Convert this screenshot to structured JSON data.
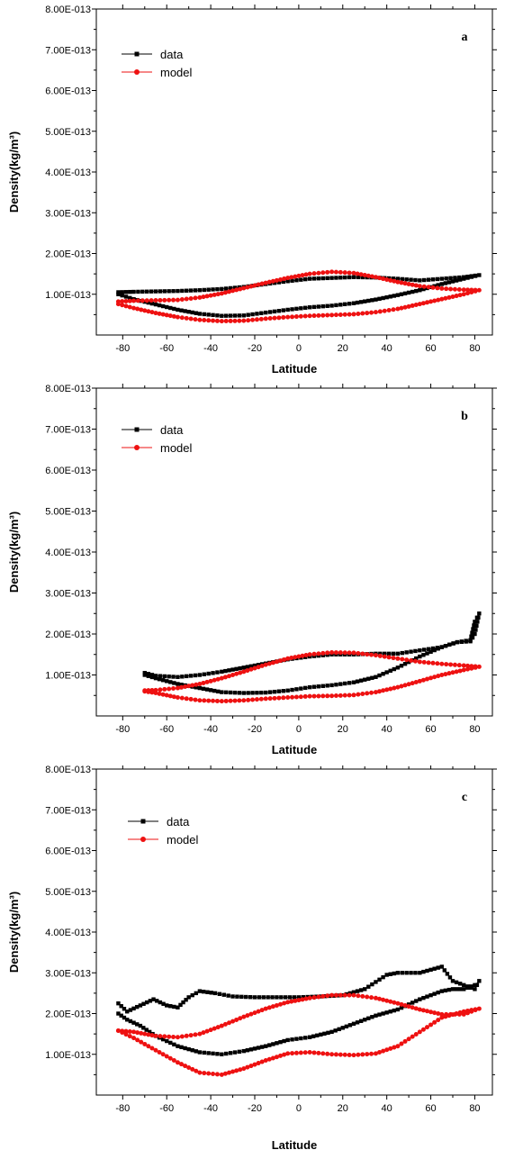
{
  "chart_data": [
    {
      "type": "scatter",
      "panel_label": "a",
      "xlabel": "Latitude",
      "ylabel": "Density(kg/m³)",
      "xlim": [
        -92,
        88
      ],
      "ylim": [
        0,
        8e-13
      ],
      "xticks": [
        -80,
        -60,
        -40,
        -20,
        0,
        20,
        40,
        60,
        80
      ],
      "yticks": [
        1e-13,
        2e-13,
        3e-13,
        4e-13,
        5e-13,
        6e-13,
        7e-13,
        8e-13
      ],
      "ytick_labels": [
        "1.00E-013",
        "2.00E-013",
        "3.00E-013",
        "4.00E-013",
        "5.00E-013",
        "6.00E-013",
        "7.00E-013",
        "8.00E-013"
      ],
      "legend_position": "top-left",
      "series": [
        {
          "name": "data",
          "color": "#000000",
          "marker": "square",
          "x": [
            -82,
            -75,
            -65,
            -55,
            -45,
            -35,
            -25,
            -15,
            -5,
            5,
            15,
            25,
            35,
            45,
            55,
            65,
            75,
            82,
            75,
            65,
            55,
            45,
            35,
            25,
            15,
            5,
            -5,
            -15,
            -25,
            -35,
            -45,
            -55,
            -65,
            -75,
            -82
          ],
          "y": [
            1.05e-13,
            1.06e-13,
            1.07e-13,
            1.08e-13,
            1.1e-13,
            1.13e-13,
            1.18e-13,
            1.25e-13,
            1.32e-13,
            1.38e-13,
            1.4e-13,
            1.42e-13,
            1.41e-13,
            1.38e-13,
            1.34e-13,
            1.38e-13,
            1.42e-13,
            1.47e-13,
            1.38e-13,
            1.25e-13,
            1.1e-13,
            9.8e-14,
            8.7e-14,
            7.8e-14,
            7.2e-14,
            6.8e-14,
            6.2e-14,
            5.5e-14,
            4.8e-14,
            4.7e-14,
            5.2e-14,
            6.2e-14,
            7.5e-14,
            8.8e-14,
            1e-13
          ]
        },
        {
          "name": "model",
          "color": "#ee1111",
          "marker": "circle",
          "x": [
            -82,
            -75,
            -65,
            -55,
            -45,
            -35,
            -25,
            -15,
            -5,
            5,
            15,
            25,
            35,
            45,
            55,
            65,
            75,
            82,
            75,
            65,
            55,
            45,
            35,
            25,
            15,
            5,
            -5,
            -15,
            -25,
            -35,
            -45,
            -55,
            -65,
            -75,
            -82
          ],
          "y": [
            8.2e-14,
            8.4e-14,
            8.5e-14,
            8.6e-14,
            9.2e-14,
            1.02e-13,
            1.15e-13,
            1.28e-13,
            1.4e-13,
            1.5e-13,
            1.55e-13,
            1.52e-13,
            1.42e-13,
            1.3e-13,
            1.2e-13,
            1.14e-13,
            1.11e-13,
            1.1e-13,
            1e-13,
            8.8e-14,
            7.6e-14,
            6.4e-14,
            5.6e-14,
            5.1e-14,
            4.9e-14,
            4.7e-14,
            4.4e-14,
            4e-14,
            3.5e-14,
            3.4e-14,
            3.7e-14,
            4.4e-14,
            5.4e-14,
            6.6e-14,
            7.6e-14
          ]
        }
      ]
    },
    {
      "type": "scatter",
      "panel_label": "b",
      "xlabel": "Latitude",
      "ylabel": "Density(kg/m³)",
      "xlim": [
        -92,
        88
      ],
      "ylim": [
        0,
        8e-13
      ],
      "xticks": [
        -80,
        -60,
        -40,
        -20,
        0,
        20,
        40,
        60,
        80
      ],
      "yticks": [
        1e-13,
        2e-13,
        3e-13,
        4e-13,
        5e-13,
        6e-13,
        7e-13,
        8e-13
      ],
      "ytick_labels": [
        "1.00E-013",
        "2.00E-013",
        "3.00E-013",
        "4.00E-013",
        "5.00E-013",
        "6.00E-013",
        "7.00E-013",
        "8.00E-013"
      ],
      "legend_position": "top-left",
      "series": [
        {
          "name": "data",
          "color": "#000000",
          "marker": "square",
          "x": [
            -70,
            -65,
            -55,
            -45,
            -35,
            -25,
            -15,
            -5,
            5,
            15,
            25,
            35,
            45,
            55,
            65,
            72,
            78,
            80,
            82,
            80,
            78,
            72,
            65,
            55,
            45,
            35,
            25,
            15,
            5,
            -5,
            -15,
            -25,
            -35,
            -45,
            -55,
            -65,
            -70
          ],
          "y": [
            1.05e-13,
            9.8e-14,
            9.5e-14,
            1e-13,
            1.08e-13,
            1.18e-13,
            1.28e-13,
            1.38e-13,
            1.45e-13,
            1.5e-13,
            1.5e-13,
            1.52e-13,
            1.52e-13,
            1.6e-13,
            1.68e-13,
            1.8e-13,
            1.85e-13,
            2.3e-13,
            2.5e-13,
            2e-13,
            1.82e-13,
            1.8e-13,
            1.68e-13,
            1.45e-13,
            1.18e-13,
            9.5e-14,
            8.2e-14,
            7.5e-14,
            7e-14,
            6.2e-14,
            5.7e-14,
            5.6e-14,
            5.8e-14,
            6.8e-14,
            7.8e-14,
            9.2e-14,
            1e-13
          ]
        },
        {
          "name": "model",
          "color": "#ee1111",
          "marker": "circle",
          "x": [
            -70,
            -65,
            -55,
            -45,
            -35,
            -25,
            -15,
            -5,
            5,
            15,
            25,
            35,
            45,
            55,
            65,
            75,
            82,
            75,
            65,
            55,
            45,
            35,
            25,
            15,
            5,
            -5,
            -15,
            -25,
            -35,
            -45,
            -55,
            -65,
            -70
          ],
          "y": [
            6.2e-14,
            6.3e-14,
            6.8e-14,
            7.8e-14,
            9.2e-14,
            1.08e-13,
            1.25e-13,
            1.4e-13,
            1.5e-13,
            1.55e-13,
            1.54e-13,
            1.48e-13,
            1.4e-13,
            1.32e-13,
            1.27e-13,
            1.23e-13,
            1.2e-13,
            1.12e-13,
            1e-13,
            8.5e-14,
            7e-14,
            5.8e-14,
            5.1e-14,
            4.9e-14,
            4.8e-14,
            4.5e-14,
            4.2e-14,
            3.8e-14,
            3.6e-14,
            3.8e-14,
            4.5e-14,
            5.6e-14,
            6e-14
          ]
        }
      ]
    },
    {
      "type": "scatter",
      "panel_label": "c",
      "xlabel": "Latitude",
      "ylabel": "Density(kg/m³)",
      "xlim": [
        -92,
        88
      ],
      "ylim": [
        0,
        8e-13
      ],
      "xticks": [
        -80,
        -60,
        -40,
        -20,
        0,
        20,
        40,
        60,
        80
      ],
      "yticks": [
        1e-13,
        2e-13,
        3e-13,
        4e-13,
        5e-13,
        6e-13,
        7e-13,
        8e-13
      ],
      "ytick_labels": [
        "1.00E-013",
        "2.00E-013",
        "3.00E-013",
        "4.00E-013",
        "5.00E-013",
        "6.00E-013",
        "7.00E-013",
        "8.00E-013"
      ],
      "legend_position": "top-left",
      "series": [
        {
          "name": "data",
          "color": "#000000",
          "marker": "square",
          "x": [
            -82,
            -78,
            -72,
            -66,
            -60,
            -55,
            -50,
            -45,
            -38,
            -30,
            -20,
            -10,
            0,
            10,
            20,
            30,
            40,
            45,
            55,
            65,
            70,
            75,
            80,
            82,
            80,
            75,
            70,
            65,
            55,
            45,
            35,
            25,
            15,
            5,
            -5,
            -15,
            -25,
            -35,
            -45,
            -55,
            -65,
            -72,
            -78,
            -82
          ],
          "y": [
            2.25e-13,
            2.05e-13,
            2.2e-13,
            2.35e-13,
            2.2e-13,
            2.15e-13,
            2.4e-13,
            2.55e-13,
            2.5e-13,
            2.42e-13,
            2.4e-13,
            2.4e-13,
            2.4e-13,
            2.42e-13,
            2.45e-13,
            2.6e-13,
            2.95e-13,
            3e-13,
            3e-13,
            3.15e-13,
            2.8e-13,
            2.7e-13,
            2.6e-13,
            2.8e-13,
            2.7e-13,
            2.6e-13,
            2.6e-13,
            2.55e-13,
            2.35e-13,
            2.1e-13,
            1.95e-13,
            1.75e-13,
            1.55e-13,
            1.42e-13,
            1.35e-13,
            1.2e-13,
            1.08e-13,
            1e-13,
            1.05e-13,
            1.2e-13,
            1.45e-13,
            1.7e-13,
            1.85e-13,
            2e-13
          ]
        },
        {
          "name": "model",
          "color": "#ee1111",
          "marker": "circle",
          "x": [
            -82,
            -75,
            -65,
            -55,
            -45,
            -35,
            -25,
            -15,
            -5,
            5,
            15,
            25,
            35,
            45,
            55,
            65,
            75,
            82,
            75,
            65,
            55,
            45,
            35,
            25,
            15,
            5,
            -5,
            -15,
            -25,
            -35,
            -45,
            -55,
            -65,
            -75,
            -82
          ],
          "y": [
            1.58e-13,
            1.55e-13,
            1.45e-13,
            1.42e-13,
            1.5e-13,
            1.7e-13,
            1.92e-13,
            2.12e-13,
            2.28e-13,
            2.38e-13,
            2.45e-13,
            2.45e-13,
            2.38e-13,
            2.25e-13,
            2.1e-13,
            1.98e-13,
            1.98e-13,
            2.12e-13,
            2.05e-13,
            1.9e-13,
            1.55e-13,
            1.2e-13,
            1.02e-13,
            9.8e-14,
            1e-13,
            1.05e-13,
            1.02e-13,
            8.5e-14,
            6.5e-14,
            5e-14,
            5.5e-14,
            8e-14,
            1.1e-13,
            1.4e-13,
            1.58e-13
          ]
        }
      ]
    }
  ]
}
